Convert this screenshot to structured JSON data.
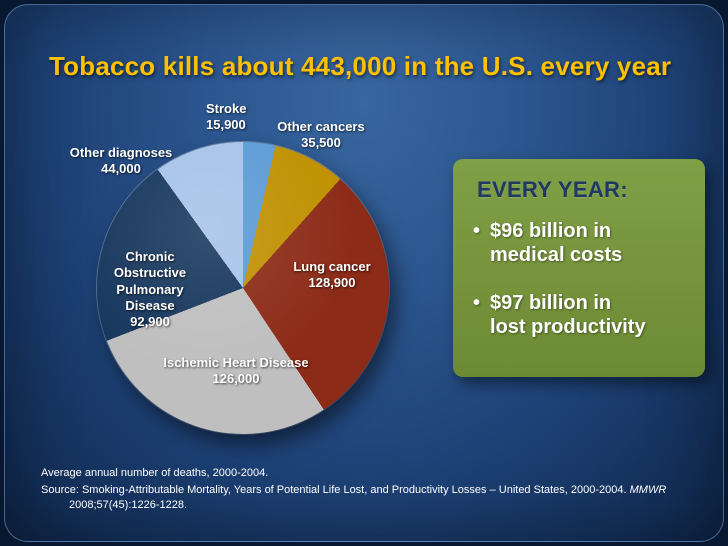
{
  "slide": {
    "title": "Tobacco kills about 443,000 in the U.S. every year",
    "footnote": "Average annual number of deaths, 2000-2004.",
    "source_prefix": "Source: Smoking-Attributable Mortality, Years of Potential Life Lost, and Productivity Losses – United States, 2000-2004. ",
    "source_journal": "MMWR",
    "source_citation": "2008;57(45):1226-1228."
  },
  "callout": {
    "heading": "EVERY YEAR:",
    "bullet_marker": "•",
    "bullets": [
      "$96 billion in\nmedical costs",
      "$97 billion in\nlost productivity"
    ],
    "bg_color": "#77933C",
    "heading_color": "#1F3864",
    "text_color": "#FFFFFF"
  },
  "chart_data": {
    "type": "pie",
    "title": "Tobacco kills about 443,000 in the U.S. every year",
    "total": 443200,
    "total_stated": "443,000",
    "start_angle_deg": 0,
    "direction": "clockwise",
    "legend_position": "data-labels",
    "slices": [
      {
        "label": "Stroke",
        "value": 15900,
        "value_label": "15,900",
        "color": "#5B9BD5"
      },
      {
        "label": "Other cancers",
        "value": 35500,
        "value_label": "35,500",
        "color": "#BF9000"
      },
      {
        "label": "Lung cancer",
        "value": 128900,
        "value_label": "128,900",
        "color": "#8C2B17"
      },
      {
        "label": "Ischemic Heart Disease",
        "value": 126000,
        "value_label": "126,000",
        "color": "#BFBFBF"
      },
      {
        "label": "Chronic Obstructive Pulmonary Disease",
        "value": 92900,
        "value_label": "92,900",
        "color": "#17375D"
      },
      {
        "label": "Other diagnoses",
        "value": 44000,
        "value_label": "44,000",
        "color": "#A7C3E9"
      }
    ]
  }
}
